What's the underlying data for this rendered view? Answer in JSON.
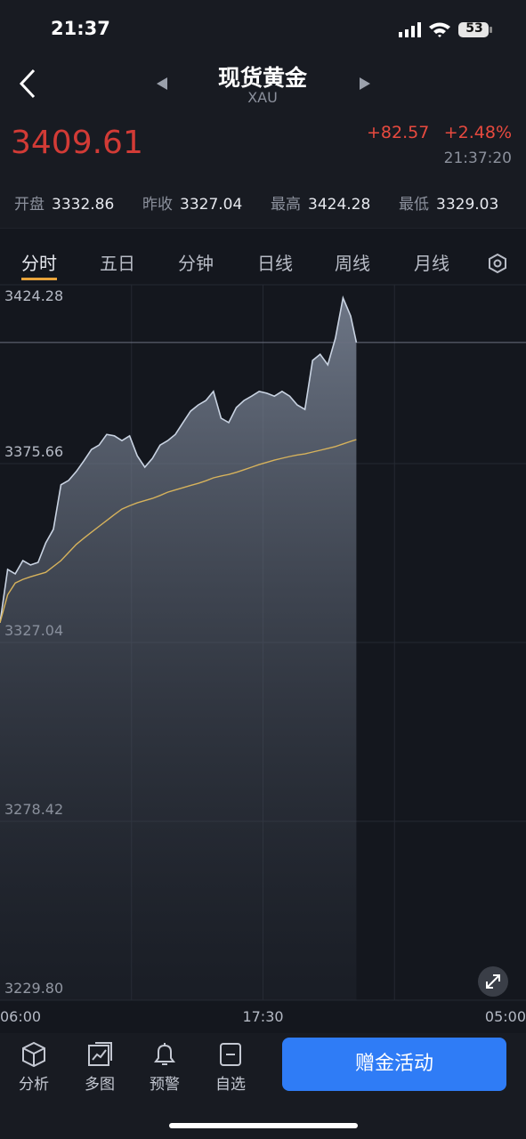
{
  "status_bar": {
    "time": "21:37",
    "battery": "53"
  },
  "header": {
    "title": "现货黄金",
    "subtitle": "XAU"
  },
  "quote": {
    "price": "3409.61",
    "change": "+82.57",
    "change_pct": "+2.48%",
    "time": "21:37:20"
  },
  "stats": [
    {
      "label": "开盘",
      "value": "3332.86"
    },
    {
      "label": "昨收",
      "value": "3327.04"
    },
    {
      "label": "最高",
      "value": "3424.28"
    },
    {
      "label": "最低",
      "value": "3329.03"
    }
  ],
  "tabs": [
    "分时",
    "五日",
    "分钟",
    "日线",
    "周线",
    "月线"
  ],
  "chart_data": {
    "type": "line",
    "x": [
      0,
      20,
      40,
      60,
      80,
      100,
      120,
      140,
      160,
      180,
      200,
      220,
      240,
      260,
      280,
      300,
      320,
      340,
      360,
      380,
      400,
      420,
      440,
      460,
      480,
      500,
      520,
      540,
      560,
      580,
      600,
      620,
      640,
      660,
      680,
      700,
      720,
      740,
      760,
      780,
      800,
      820,
      840,
      860,
      880,
      900,
      920,
      935
    ],
    "series": [
      {
        "name": "price",
        "color": "#c9d3e2",
        "values": [
          3332.4,
          3346.9,
          3345.7,
          3349.3,
          3348.1,
          3348.8,
          3354.1,
          3357.8,
          3369.9,
          3371.1,
          3373.5,
          3376.4,
          3379.5,
          3380.7,
          3383.6,
          3383.2,
          3381.9,
          3383.2,
          3377.8,
          3374.7,
          3377.1,
          3380.7,
          3381.9,
          3383.6,
          3386.8,
          3389.9,
          3391.6,
          3392.8,
          3395.3,
          3388.0,
          3386.8,
          3390.9,
          3392.8,
          3394.0,
          3395.3,
          3394.8,
          3394.0,
          3395.3,
          3394.0,
          3391.6,
          3390.4,
          3403.7,
          3405.4,
          3402.5,
          3409.8,
          3420.7,
          3415.8,
          3408.6
        ]
      },
      {
        "name": "average",
        "color": "#d6b25c",
        "values": [
          3332.4,
          3340.0,
          3343.2,
          3344.2,
          3344.9,
          3345.5,
          3346.1,
          3347.7,
          3349.3,
          3351.5,
          3353.7,
          3355.4,
          3357.0,
          3358.6,
          3360.2,
          3361.8,
          3363.3,
          3364.2,
          3365.0,
          3365.6,
          3366.2,
          3367.0,
          3367.9,
          3368.5,
          3369.1,
          3369.7,
          3370.3,
          3371.0,
          3371.8,
          3372.3,
          3372.7,
          3373.3,
          3374.0,
          3374.7,
          3375.4,
          3376.0,
          3376.6,
          3377.1,
          3377.6,
          3378.0,
          3378.3,
          3378.8,
          3379.3,
          3379.8,
          3380.3,
          3381.0,
          3381.7,
          3382.2
        ]
      }
    ],
    "xlim": [
      0,
      1380
    ],
    "xticks": [
      {
        "value": 0,
        "label": "06:00"
      },
      {
        "value": 690,
        "label": "17:30"
      },
      {
        "value": 1380,
        "label": "05:00"
      }
    ],
    "ylim": [
      3229.8,
      3424.28
    ],
    "yticks": [
      3424.28,
      3375.66,
      3327.04,
      3278.42,
      {
        "value": 3229.8,
        "label": "3229.80"
      }
    ],
    "grid": true
  },
  "toolbar": [
    "分析",
    "多图",
    "预警",
    "自选"
  ],
  "action_button": "赠金活动"
}
